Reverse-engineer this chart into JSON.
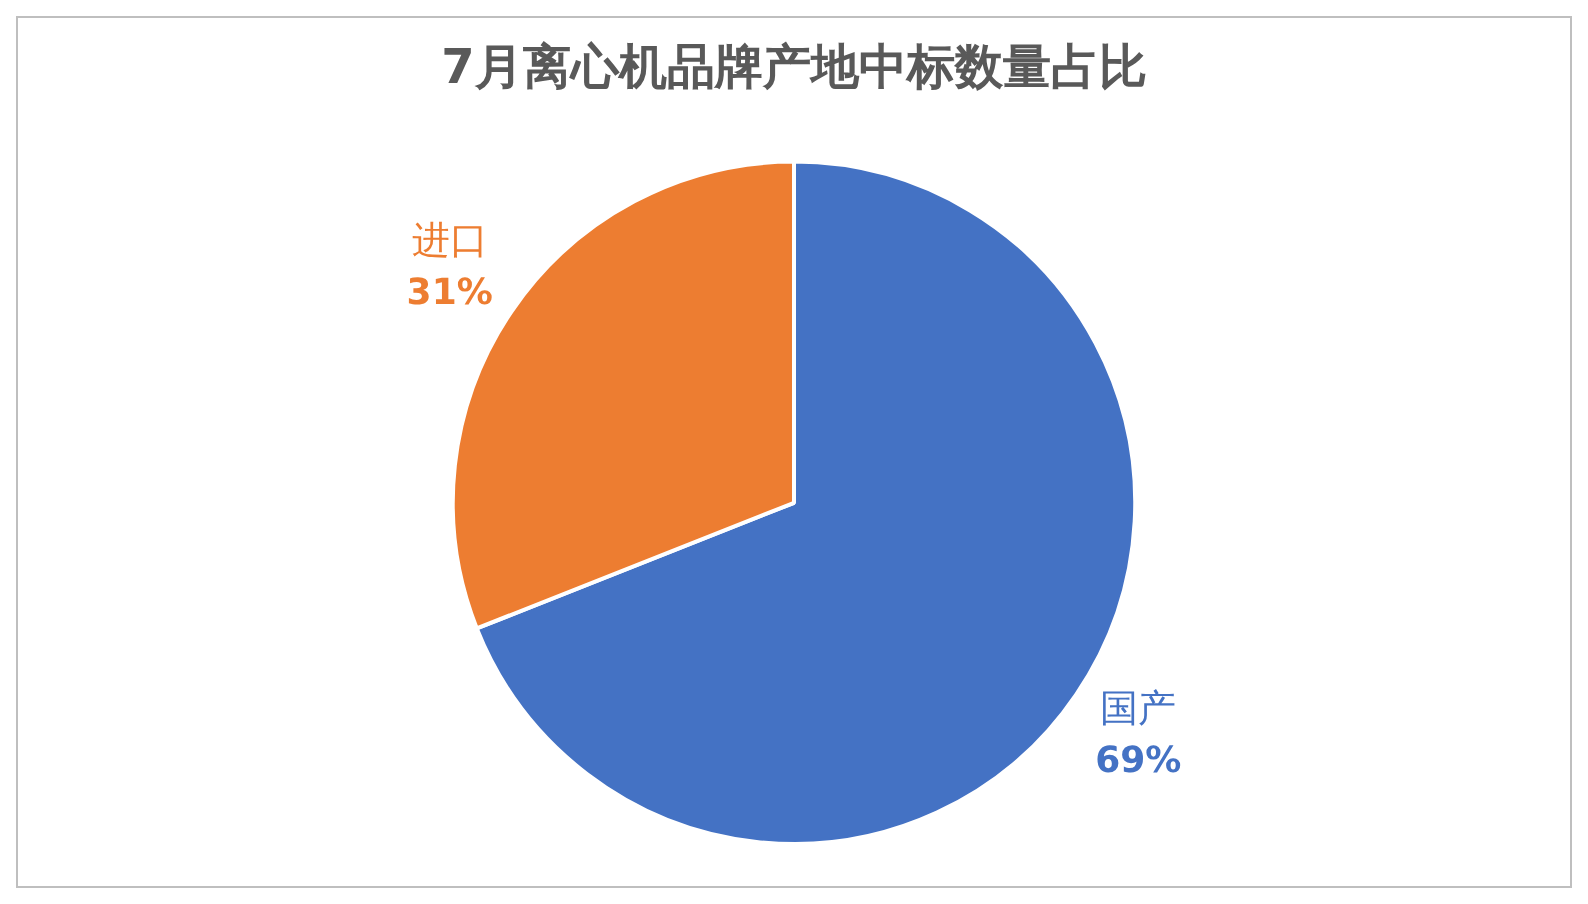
{
  "chart_data": {
    "type": "pie",
    "title": "7月离心机品牌产地中标数量占比",
    "categories": [
      "国产",
      "进口"
    ],
    "values": [
      69,
      31
    ],
    "value_labels": [
      "69%",
      "31%"
    ],
    "colors": [
      "#4472c4",
      "#ed7d31"
    ],
    "legend": false
  }
}
